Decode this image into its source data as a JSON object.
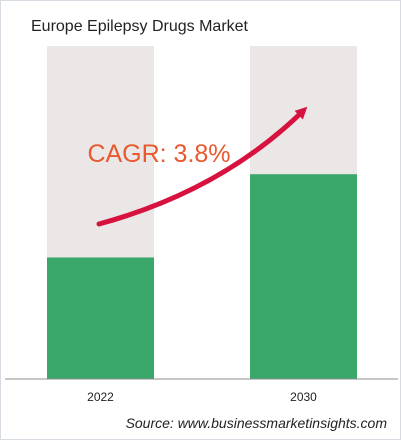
{
  "chart_data": {
    "type": "bar",
    "title": "Europe Epilepsy Drugs Market",
    "categories": [
      "2022",
      "2030"
    ],
    "values": [
      36.5,
      61.5
    ],
    "ylim": [
      0,
      100
    ],
    "xlabel": "",
    "ylabel": "",
    "grid": false,
    "legend": "none",
    "annotation": "CAGR: 3.8%",
    "source": "Source: www.businessmarketinsights.com",
    "colors": {
      "bar": "#3aa86b",
      "bar_background": "#ebe7e7",
      "arrow": "#d8123e",
      "cagr_text": "#e8592f",
      "baseline": "#8c8c8c",
      "text": "#222222"
    }
  }
}
